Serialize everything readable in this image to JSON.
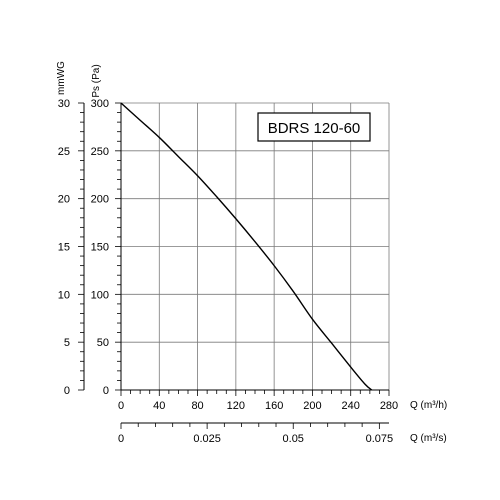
{
  "chart_data": {
    "type": "line",
    "title": "BDRS 120-60",
    "series": [
      {
        "x": [
          0,
          20,
          40,
          60,
          80,
          100,
          120,
          140,
          160,
          180,
          200,
          220,
          240,
          255,
          262
        ],
        "y": [
          300,
          282,
          264,
          244,
          224,
          202,
          179,
          155,
          130,
          103,
          74,
          49,
          24,
          6,
          0
        ],
        "color": "#000000"
      }
    ],
    "x_axis": {
      "label": "Q (m³/h)",
      "min": 0,
      "max": 280,
      "ticks": [
        0,
        40,
        80,
        120,
        160,
        200,
        240,
        280
      ],
      "tick_labels": [
        "0",
        "40",
        "80",
        "120",
        "160",
        "200",
        "240",
        "280"
      ]
    },
    "x2_axis": {
      "label": "Q (m³/s)",
      "min": 0,
      "max": 0.0778,
      "ticks": [
        0,
        0.025,
        0.05,
        0.075
      ],
      "tick_labels": [
        "0",
        "0.025",
        "0.05",
        "0.075"
      ]
    },
    "y_axis": {
      "label": "Ps (Pa)",
      "min": 0,
      "max": 300,
      "ticks": [
        0,
        50,
        100,
        150,
        200,
        250,
        300
      ],
      "tick_labels": [
        "0",
        "50",
        "100",
        "150",
        "200",
        "250",
        "300"
      ]
    },
    "y2_axis": {
      "label": "mmWG",
      "min": 0,
      "max": 30,
      "ticks": [
        0,
        5,
        10,
        15,
        20,
        25,
        30
      ],
      "tick_labels": [
        "0",
        "5",
        "10",
        "15",
        "20",
        "25",
        "30"
      ]
    },
    "grid": true,
    "legend": "top-right box"
  }
}
